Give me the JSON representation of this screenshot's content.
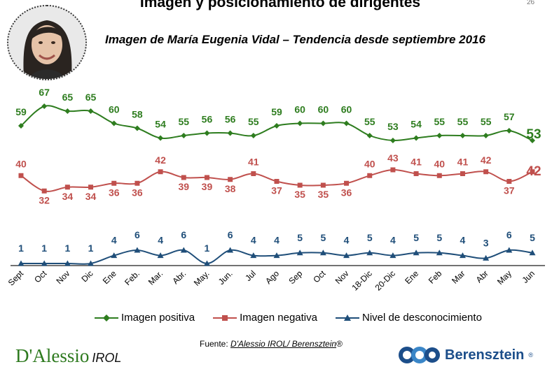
{
  "header": {
    "title": "Imagen y posicionamiento  de dirigentes",
    "page_number": "26",
    "subtitle": "Imagen de María Eugenia Vidal – Tendencia desde septiembre 2016"
  },
  "chart_data": {
    "type": "line",
    "title": "Imagen de María Eugenia Vidal – Tendencia desde septiembre 2016",
    "categories": [
      "Sept",
      "Oct",
      "Nov",
      "Dic",
      "Ene",
      "Feb.",
      "Mar.",
      "Abr.",
      "May.",
      "Jun.",
      "Jul",
      "Ago",
      "Sep",
      "Oct",
      "Nov",
      "18-Dic",
      "20-Dic",
      "Ene",
      "Feb",
      "Mar",
      "Abr",
      "May",
      "Jun"
    ],
    "series": [
      {
        "name": "Imagen positiva",
        "color": "#2e7d1f",
        "marker": "diamond",
        "values": [
          59,
          67,
          65,
          65,
          60,
          58,
          54,
          55,
          56,
          56,
          55,
          59,
          60,
          60,
          60,
          55,
          53,
          54,
          55,
          55,
          55,
          57,
          53
        ]
      },
      {
        "name": "Imagen negativa",
        "color": "#c0504d",
        "marker": "square",
        "values": [
          40,
          32,
          34,
          34,
          36,
          36,
          42,
          39,
          39,
          38,
          41,
          37,
          35,
          35,
          36,
          40,
          43,
          41,
          40,
          41,
          42,
          37,
          42
        ]
      },
      {
        "name": "Nivel de desconocimiento",
        "color": "#1f4e79",
        "marker": "triangle",
        "values": [
          1,
          1,
          1,
          1,
          4,
          6,
          4,
          6,
          1,
          6,
          4,
          4,
          5,
          5,
          4,
          5,
          4,
          5,
          5,
          4,
          3,
          6,
          5
        ]
      }
    ],
    "legend_position": "bottom",
    "grid": false
  },
  "footer": {
    "source_prefix": "Fuente: ",
    "source_link": "D'Alessio IROL/ Berensztein",
    "source_suffix": "®",
    "logo_left_main": "D'Alessio",
    "logo_left_sub": "IROL",
    "logo_right_name": "Berensztein",
    "logo_right_reg": "®"
  }
}
